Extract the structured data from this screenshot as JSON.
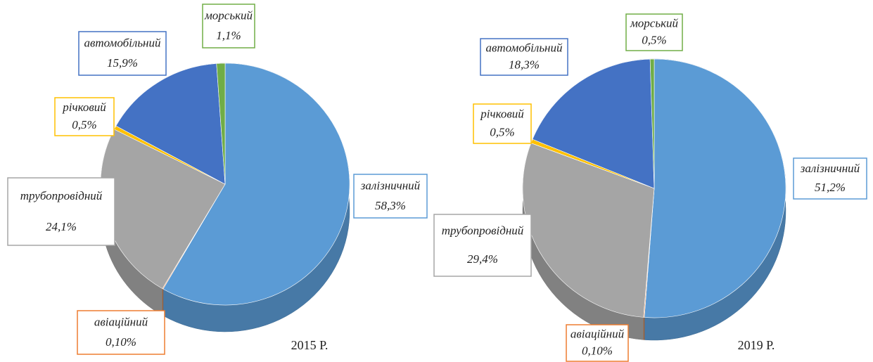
{
  "chart_data": [
    {
      "type": "pie",
      "title": "2015 Р.",
      "categories": [
        "залізничний",
        "авіаційний",
        "трубопровідний",
        "річковий",
        "автомобільний",
        "морський"
      ],
      "values": [
        58.3,
        0.1,
        24.1,
        0.5,
        15.9,
        1.1
      ],
      "value_labels": [
        "58,3%",
        "0,10%",
        "24,1%",
        "0,5%",
        "15,9%",
        "1,1%"
      ],
      "colors": [
        "#5b9bd5",
        "#ed7d31",
        "#a5a5a5",
        "#ffc000",
        "#4472c4",
        "#70ad47"
      ]
    },
    {
      "type": "pie",
      "title": "2019 Р.",
      "categories": [
        "залізничний",
        "авіаційний",
        "трубопровідний",
        "річковий",
        "автомобільний",
        "морський"
      ],
      "values": [
        51.2,
        0.1,
        29.4,
        0.5,
        18.3,
        0.5
      ],
      "value_labels": [
        "51,2%",
        "0,10%",
        "29,4%",
        "0,5%",
        "18,3%",
        "0,5%"
      ],
      "colors": [
        "#5b9bd5",
        "#ed7d31",
        "#a5a5a5",
        "#ffc000",
        "#4472c4",
        "#70ad47"
      ]
    }
  ]
}
